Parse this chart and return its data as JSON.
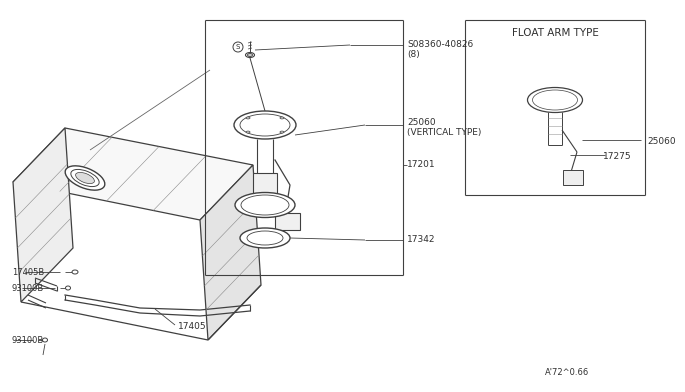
{
  "bg_color": "#ffffff",
  "line_color": "#404040",
  "text_color": "#303030",
  "float_arm_label": "FLOAT ARM TYPE",
  "diagram_code": "A'72^0.66",
  "screw_label_line1": "S08360-40826",
  "screw_label_line2": "(8)",
  "float_unit_label_line1": "25060",
  "float_unit_label_line2": "(VERTICAL TYPE)",
  "lock_ring_label": "17342",
  "tank_label": "17201",
  "band_bolt_label": "17405B",
  "clip_top_label": "93100B",
  "clip_bot_label": "93100B",
  "band_label": "17405",
  "float_arm_part1": "25060",
  "float_arm_part2": "17275"
}
